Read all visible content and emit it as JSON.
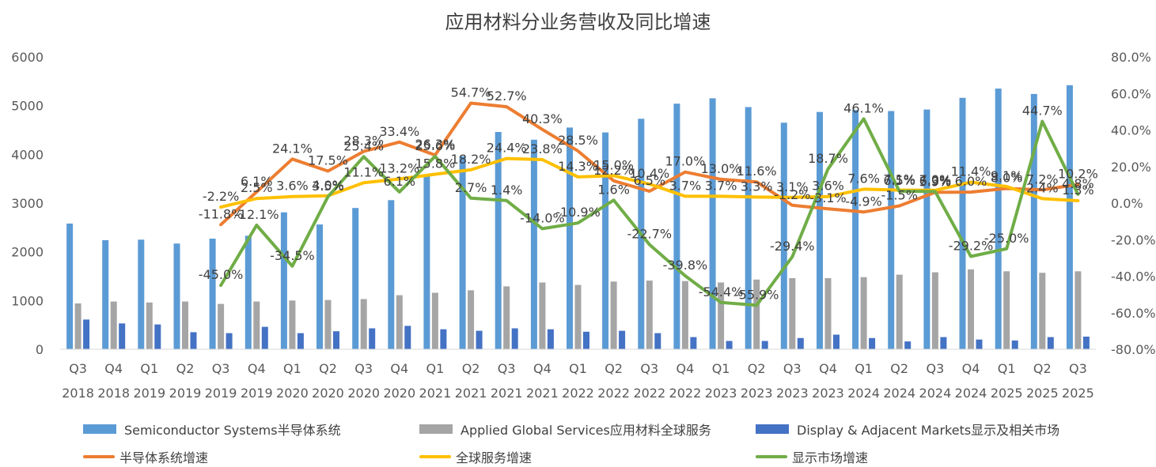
{
  "chart_data": {
    "type": "bar",
    "title": "应用材料分业务营收及同比增速",
    "categories": [
      [
        "Q3",
        "2018"
      ],
      [
        "Q4",
        "2018"
      ],
      [
        "Q1",
        "2019"
      ],
      [
        "Q2",
        "2019"
      ],
      [
        "Q3",
        "2019"
      ],
      [
        "Q4",
        "2019"
      ],
      [
        "Q1",
        "2020"
      ],
      [
        "Q2",
        "2020"
      ],
      [
        "Q3",
        "2020"
      ],
      [
        "Q4",
        "2020"
      ],
      [
        "Q1",
        "2021"
      ],
      [
        "Q2",
        "2021"
      ],
      [
        "Q3",
        "2021"
      ],
      [
        "Q4",
        "2021"
      ],
      [
        "Q1",
        "2022"
      ],
      [
        "Q2",
        "2022"
      ],
      [
        "Q3",
        "2022"
      ],
      [
        "Q4",
        "2022"
      ],
      [
        "Q1",
        "2023"
      ],
      [
        "Q2",
        "2023"
      ],
      [
        "Q3",
        "2023"
      ],
      [
        "Q4",
        "2023"
      ],
      [
        "Q1",
        "2024"
      ],
      [
        "Q2",
        "2024"
      ],
      [
        "Q3",
        "2024"
      ],
      [
        "Q4",
        "2024"
      ],
      [
        "Q1",
        "2025"
      ],
      [
        "Q2",
        "2025"
      ],
      [
        "Q3",
        "2025"
      ]
    ],
    "left_axis": {
      "min": 0,
      "max": 6000,
      "ticks": [
        "0",
        "1000",
        "2000",
        "3000",
        "4000",
        "5000",
        "6000"
      ]
    },
    "right_axis": {
      "min": -80,
      "max": 80,
      "ticks": [
        "-80.0%",
        "-60.0%",
        "-40.0%",
        "-20.0%",
        "0.0%",
        "20.0%",
        "40.0%",
        "60.0%",
        "80.0%"
      ]
    },
    "grid": false,
    "legend_position": "bottom",
    "bar_series": [
      {
        "name": "Semiconductor Systems半导体系统",
        "color": "#5b9bd5",
        "values": [
          2580,
          2240,
          2250,
          2170,
          2270,
          2330,
          2810,
          2560,
          2900,
          3060,
          3550,
          3960,
          4460,
          4300,
          4550,
          4450,
          4730,
          5040,
          5150,
          4970,
          4650,
          4870,
          4910,
          4890,
          4920,
          5160,
          5350,
          5240,
          5420
        ]
      },
      {
        "name": "Applied Global Services应用材料全球服务",
        "color": "#a5a5a5",
        "values": [
          940,
          980,
          960,
          980,
          930,
          980,
          1000,
          1010,
          1030,
          1110,
          1160,
          1210,
          1290,
          1370,
          1320,
          1390,
          1410,
          1400,
          1370,
          1430,
          1460,
          1460,
          1480,
          1530,
          1580,
          1640,
          1600,
          1570,
          1600
        ]
      },
      {
        "name": "Display & Adjacent Markets显示及相关市场",
        "color": "#4472c4",
        "values": [
          610,
          530,
          510,
          350,
          330,
          460,
          330,
          370,
          430,
          480,
          410,
          380,
          430,
          410,
          360,
          380,
          330,
          250,
          170,
          170,
          230,
          300,
          230,
          160,
          250,
          200,
          180,
          250,
          260
        ]
      }
    ],
    "line_series": [
      {
        "name": "半导体系统增速",
        "color": "#ed7d31",
        "values": [
          null,
          null,
          null,
          null,
          -11.8,
          6.1,
          24.1,
          17.5,
          28.3,
          33.4,
          26.3,
          54.7,
          52.7,
          40.3,
          28.5,
          12.2,
          6.5,
          17.0,
          13.0,
          11.6,
          -1.2,
          -3.1,
          -4.9,
          -1.5,
          5.9,
          6.0,
          8.0,
          7.2,
          10.2
        ],
        "labels": [
          null,
          null,
          null,
          null,
          "-11.8%",
          "6.1%",
          "24.1%",
          "17.5%",
          "28.3%",
          "33.4%",
          "26.3%",
          "54.7%",
          "52.7%",
          "40.3%",
          "28.5%",
          "12.2%",
          "6.5%",
          "17.0%",
          "13.0%",
          "11.6%",
          "-1.2%",
          "-3.1%",
          "-4.9%",
          "-1.5%",
          "5.9%",
          "6.0%",
          "8.0%",
          "7.2%",
          "10.2%"
        ]
      },
      {
        "name": "全球服务增速",
        "color": "#ffc000",
        "values": [
          null,
          null,
          null,
          null,
          -2.2,
          2.5,
          3.6,
          4.0,
          11.1,
          13.2,
          15.8,
          18.2,
          24.4,
          23.8,
          14.3,
          15.0,
          10.4,
          3.7,
          3.7,
          3.3,
          3.1,
          3.6,
          7.6,
          7.1,
          7.0,
          11.4,
          9.1,
          2.4,
          1.3
        ],
        "labels": [
          null,
          null,
          null,
          null,
          "-2.2%",
          "2.5%",
          "3.6%",
          "4.0%",
          "11.1%",
          "13.2%",
          "15.8%",
          "18.2%",
          "24.4%",
          "23.8%",
          "14.3%",
          "15.0%",
          "10.4%",
          "3.7%",
          "3.7%",
          "3.3%",
          "3.1%",
          "3.6%",
          "7.6%",
          "7.1%",
          "7.0%",
          "11.4%",
          "9.1%",
          "2.4%",
          "1.3%"
        ]
      },
      {
        "name": "显示市场增速",
        "color": "#70ad47",
        "values": [
          null,
          null,
          null,
          null,
          -45.0,
          -12.1,
          -34.5,
          3.5,
          25.4,
          6.1,
          25.6,
          2.7,
          1.4,
          -14.0,
          -10.9,
          1.6,
          -22.7,
          -39.8,
          -54.4,
          -55.9,
          -29.4,
          18.7,
          46.1,
          6.5,
          6.3,
          -29.2,
          -25.0,
          44.7,
          4.8
        ],
        "labels": [
          null,
          null,
          null,
          null,
          "-45.0%",
          "-12.1%",
          "-34.5%",
          "3.5%",
          "25.4%",
          "6.1%",
          "25.6%",
          "2.7%",
          "1.4%",
          "-14.0%",
          "-10.9%",
          "1.6%",
          "-22.7%",
          "-39.8%",
          "-54.4%",
          "-55.9%",
          "-29.4%",
          "18.7%",
          "46.1%",
          "6.5%",
          "6.3%",
          "-29.2%",
          "-25.0%",
          "44.7%",
          "4.8%"
        ]
      }
    ]
  }
}
